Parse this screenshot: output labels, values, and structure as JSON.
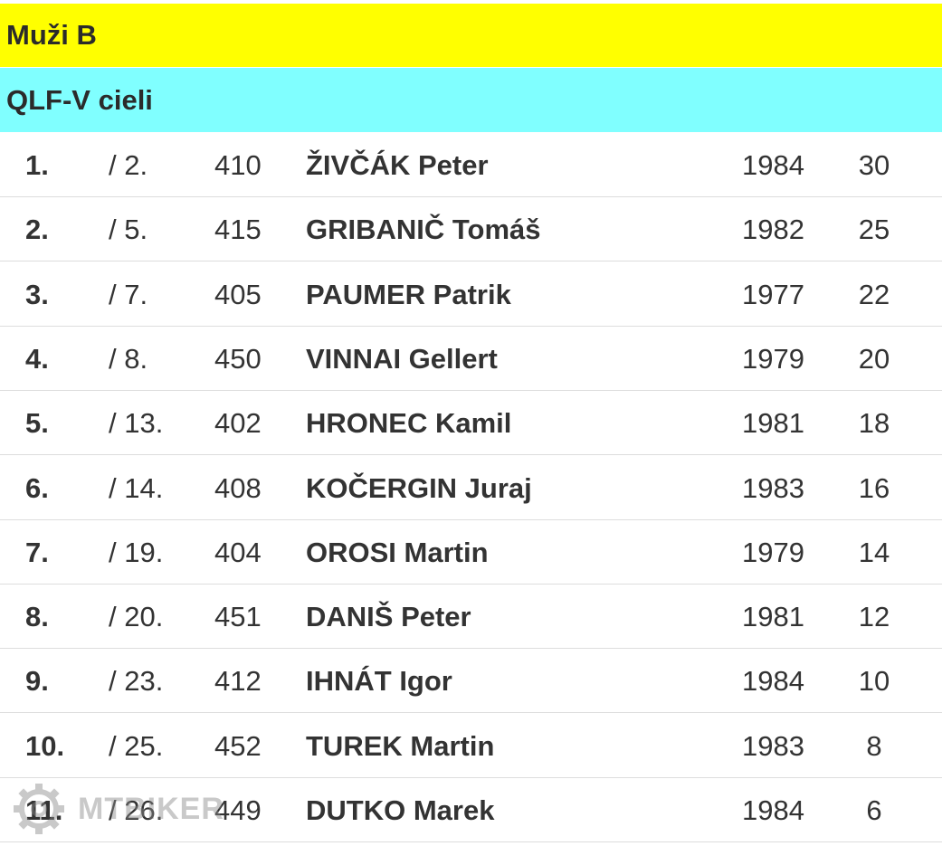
{
  "header": {
    "title": "Muži B"
  },
  "subheader": {
    "title": "QLF-V cieli"
  },
  "table": {
    "rows": [
      [
        "1.",
        "/ 2.",
        "410",
        "ŽIVČÁK Peter",
        "1984",
        "30"
      ],
      [
        "2.",
        "/ 5.",
        "415",
        "GRIBANIČ Tomáš",
        "1982",
        "25"
      ],
      [
        "3.",
        "/ 7.",
        "405",
        "PAUMER Patrik",
        "1977",
        "22"
      ],
      [
        "4.",
        "/ 8.",
        "450",
        "VINNAI Gellert",
        "1979",
        "20"
      ],
      [
        "5.",
        "/ 13.",
        "402",
        "HRONEC Kamil",
        "1981",
        "18"
      ],
      [
        "6.",
        "/ 14.",
        "408",
        "KOČERGIN Juraj",
        "1983",
        "16"
      ],
      [
        "7.",
        "/ 19.",
        "404",
        "OROSI Martin",
        "1979",
        "14"
      ],
      [
        "8.",
        "/ 20.",
        "451",
        "DANIŠ Peter",
        "1981",
        "12"
      ],
      [
        "9.",
        "/ 23.",
        "412",
        "IHNÁT Igor",
        "1984",
        "10"
      ],
      [
        "10.",
        "/ 25.",
        "452",
        "TUREK Martin",
        "1983",
        "8"
      ],
      [
        "11.",
        "/ 26.",
        "449",
        "DUTKO Marek",
        "1984",
        "6"
      ]
    ]
  },
  "watermark": {
    "text": "MTBIKER"
  }
}
